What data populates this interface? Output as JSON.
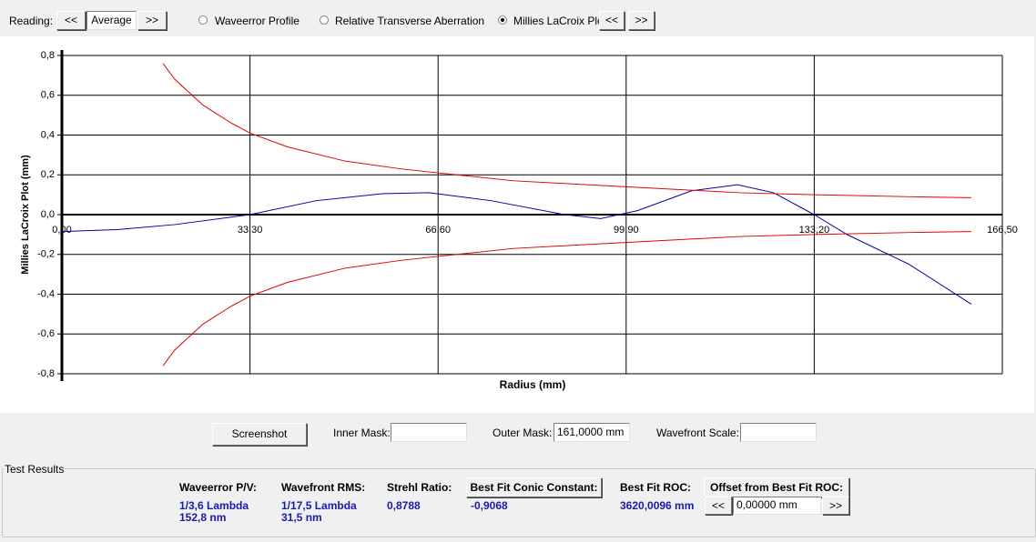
{
  "toolbar": {
    "reading_label": "Reading:",
    "prev": "<<",
    "mode": "Average",
    "next": ">>",
    "options": [
      {
        "label": "Waveerror Profile",
        "selected": false
      },
      {
        "label": "Relative Transverse Aberration",
        "selected": false
      },
      {
        "label": "Millies LaCroix Plot",
        "selected": true
      }
    ],
    "plot_prev": "<<",
    "plot_next": ">>"
  },
  "chart_data": {
    "type": "line",
    "y_label": "Millies LaCroix Plot (mm)",
    "x_label": "Radius (mm)",
    "xlim": [
      0,
      166.5
    ],
    "ylim": [
      -0.8,
      0.8
    ],
    "xticks": [
      {
        "value": 0,
        "label": "0,00"
      },
      {
        "value": 33.3,
        "label": "33,30"
      },
      {
        "value": 66.6,
        "label": "66,60"
      },
      {
        "value": 99.9,
        "label": "99,90"
      },
      {
        "value": 133.2,
        "label": "133,20"
      },
      {
        "value": 166.5,
        "label": "166,50"
      }
    ],
    "yticks": [
      {
        "value": 0.8,
        "label": "0,8"
      },
      {
        "value": 0.6,
        "label": "0,6"
      },
      {
        "value": 0.4,
        "label": "0,4"
      },
      {
        "value": 0.2,
        "label": "0,2"
      },
      {
        "value": 0,
        "label": "0,0"
      },
      {
        "value": -0.2,
        "label": "-0,2"
      },
      {
        "value": -0.4,
        "label": "-0,4"
      },
      {
        "value": -0.6,
        "label": "-0,6"
      },
      {
        "value": -0.8,
        "label": "-0,8"
      }
    ],
    "grid": true,
    "series": [
      {
        "color": "#0000a8",
        "x": [
          0,
          10,
          20,
          33.3,
          45,
          56.7,
          65,
          76,
          89,
          95.4,
          101.9,
          111.5,
          119.6,
          126,
          133.2,
          139,
          150,
          161
        ],
        "values": [
          -0.085,
          -0.075,
          -0.05,
          0,
          0.07,
          0.105,
          0.11,
          0.07,
          0,
          -0.02,
          0.02,
          0.12,
          0.15,
          0.11,
          0,
          -0.1,
          -0.25,
          -0.45
        ]
      },
      {
        "color": "#e00000",
        "x": [
          17.9,
          20,
          25,
          30,
          33.3,
          40,
          50,
          60,
          66.6,
          80,
          99.9,
          120,
          133.2,
          150,
          161
        ],
        "values": [
          0.76,
          0.68,
          0.55,
          0.46,
          0.41,
          0.34,
          0.27,
          0.23,
          0.21,
          0.17,
          0.14,
          0.11,
          0.1,
          0.09,
          0.085
        ]
      },
      {
        "color": "#e00000",
        "x": [
          17.9,
          20,
          25,
          30,
          33.3,
          40,
          50,
          60,
          66.6,
          80,
          99.9,
          120,
          133.2,
          150,
          161
        ],
        "values": [
          -0.76,
          -0.68,
          -0.55,
          -0.46,
          -0.41,
          -0.34,
          -0.27,
          -0.23,
          -0.21,
          -0.17,
          -0.14,
          -0.11,
          -0.1,
          -0.09,
          -0.085
        ]
      }
    ]
  },
  "controls": {
    "screenshot": "Screenshot",
    "inner_mask_label": "Inner Mask:",
    "outer_mask_label": "Outer Mask:",
    "outer_mask_value": "161,0000 mm",
    "wavefront_scale_label": "Wavefront Scale:"
  },
  "test_results": {
    "title": "Test Results",
    "pv_label": "Waveerror P/V:",
    "pv_lambda": "1/3,6 Lambda",
    "pv_nm": "152,8 nm",
    "rms_label": "Wavefront RMS:",
    "rms_lambda": "1/17,5 Lambda",
    "rms_nm": "31,5 nm",
    "strehl_label": "Strehl Ratio:",
    "strehl_value": "0,8788",
    "conic_label": "Best Fit Conic Constant:",
    "conic_value": "-0,9068",
    "roc_label": "Best Fit ROC:",
    "roc_value": "3620,0096 mm",
    "offset_label": "Offset from Best Fit ROC:",
    "offset_prev": "<<",
    "offset_value": "0,00000 mm",
    "offset_next": ">>"
  }
}
